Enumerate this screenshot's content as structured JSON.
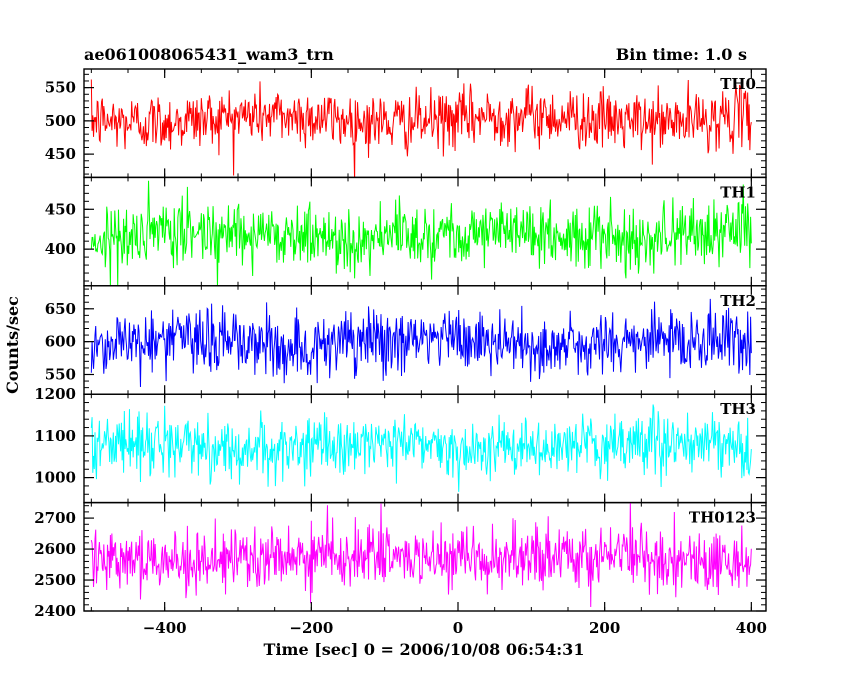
{
  "header": {
    "title": "ae061008065431_wam3_trn",
    "bin_time": "Bin time: 1.0 s"
  },
  "chart_data": {
    "type": "line",
    "xlabel": "Time [sec] 0 = 2006/10/08 06:54:31",
    "ylabel": "Counts/sec",
    "xlim": [
      -510,
      420
    ],
    "x_range": [
      -500,
      400
    ],
    "x_step": 1,
    "x_ticks": [
      -400,
      -200,
      0,
      200,
      400
    ],
    "x_tick_labels": [
      "−400",
      "−200",
      "0",
      "200",
      "400"
    ],
    "panels": [
      {
        "name": "TH0",
        "color": "#ff0000",
        "ylim": [
          415,
          578
        ],
        "yticks": [
          450,
          500,
          550
        ],
        "mean": 503,
        "sigma": 22
      },
      {
        "name": "TH1",
        "color": "#00ff00",
        "ylim": [
          354,
          490
        ],
        "yticks": [
          400,
          450
        ],
        "mean": 418,
        "sigma": 20
      },
      {
        "name": "TH2",
        "color": "#0000ff",
        "ylim": [
          520,
          685
        ],
        "yticks": [
          550,
          600,
          650
        ],
        "mean": 598,
        "sigma": 25
      },
      {
        "name": "TH3",
        "color": "#00ffff",
        "ylim": [
          940,
          1200
        ],
        "yticks": [
          1000,
          1100,
          1200
        ],
        "mean": 1075,
        "sigma": 35
      },
      {
        "name": "TH0123",
        "color": "#ff00ff",
        "ylim": [
          2400,
          2750
        ],
        "yticks": [
          2400,
          2500,
          2600,
          2700
        ],
        "mean": 2570,
        "sigma": 50
      }
    ]
  }
}
